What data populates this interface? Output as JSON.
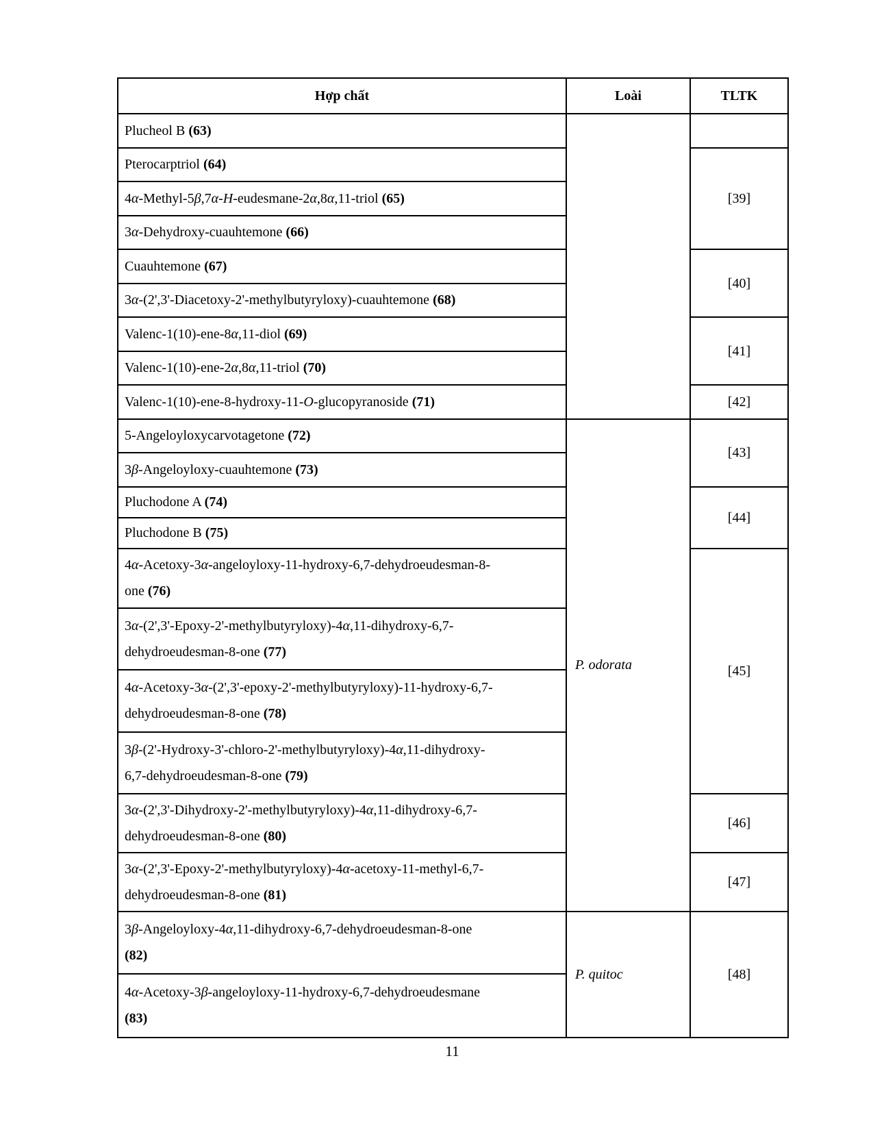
{
  "page": {
    "number": "11"
  },
  "table": {
    "headers": {
      "compound": "Hợp chất",
      "species": "Loài",
      "ref": "TLTK"
    },
    "rows": [
      {
        "compound": "Plucheol B **(63)**"
      },
      {
        "compound": "Pterocarptriol **(64)**"
      },
      {
        "compound": "4*α*-Methyl-5*β*,7*α*-*H*-eudesmane-2*α*,8*α*,11-triol **(65)**"
      },
      {
        "compound": "3*α*-Dehydroxy-cuauhtemone **(66)**"
      },
      {
        "compound": "Cuauhtemone **(67)**"
      },
      {
        "compound": "3*α*-(2',3'-Diacetoxy-2'-methylbutyryloxy)-cuauhtemone **(68)**"
      },
      {
        "compound": "Valenc-1(10)-ene-8*α*,11-diol **(69)**"
      },
      {
        "compound": "Valenc-1(10)-ene-2*α*,8*α*,11-triol **(70)**"
      },
      {
        "compound": "Valenc-1(10)-ene-8-hydroxy-11-*O*-glucopyranoside **(71)**"
      },
      {
        "compound": "5-Angeloyloxycarvotagetone **(72)**"
      },
      {
        "compound": "3*β*-Angeloyloxy-cuauhtemone **(73)**"
      },
      {
        "compound": "Pluchodone A **(74)**"
      },
      {
        "compound": "Pluchodone B **(75)**"
      },
      {
        "compound": "4*α*-Acetoxy-3*α*-angeloyloxy-11-hydroxy-6,7-dehydroeudesman-8-\none **(76)**"
      },
      {
        "compound": "3*α*-(2',3'-Epoxy-2'-methylbutyryloxy)-4*α*,11-dihydroxy-6,7-\ndehydroeudesman-8-one **(77)**"
      },
      {
        "compound": "4*α*-Acetoxy-3*α*-(2',3'-epoxy-2'-methylbutyryloxy)-11-hydroxy-6,7-\ndehydroeudesman-8-one **(78)**"
      },
      {
        "compound": "3*β*-(2'-Hydroxy-3'-chloro-2'-methylbutyryloxy)-4*α*,11-dihydroxy-\n6,7-dehydroeudesman-8-one **(79)**"
      },
      {
        "compound": "3*α*-(2',3'-Dihydroxy-2'-methylbutyryloxy)-4*α*,11-dihydroxy-6,7-\ndehydroeudesman-8-one **(80)**"
      },
      {
        "compound": "3*α*-(2',3'-Epoxy-2'-methylbutyryloxy)-4*α*-acetoxy-11-methyl-6,7-\ndehydroeudesman-8-one **(81)**"
      },
      {
        "compound": "3*β*-Angeloyloxy-4*α*,11-dihydroxy-6,7-dehydroeudesman-8-one\n**(82)**"
      },
      {
        "compound": "4*α*-Acetoxy-3*β*-angeloyloxy-11-hydroxy-6,7-dehydroeudesmane\n**(83)**"
      }
    ],
    "species_cells": [
      {
        "text": ""
      },
      {
        "text": "*P. odorata*"
      },
      {
        "text": "*P. quitoc*"
      }
    ],
    "ref_cells": [
      {
        "text": ""
      },
      {
        "text": "[39]"
      },
      {
        "text": "[40]"
      },
      {
        "text": "[41]"
      },
      {
        "text": "[42]"
      },
      {
        "text": "[43]"
      },
      {
        "text": "[44]"
      },
      {
        "text": "[45]"
      },
      {
        "text": "[46]"
      },
      {
        "text": "[47]"
      },
      {
        "text": "[48]"
      }
    ]
  }
}
